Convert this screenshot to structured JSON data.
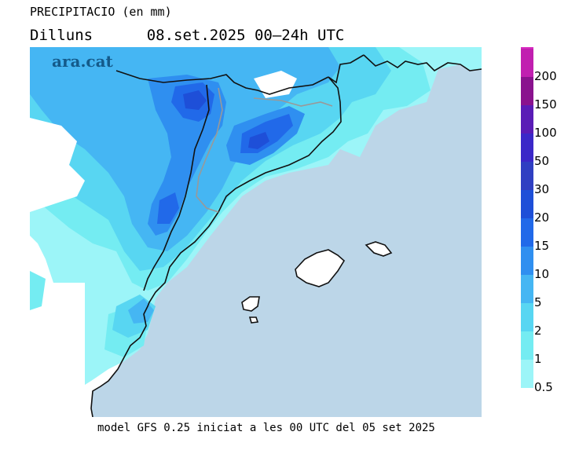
{
  "header": {
    "title": "PRECIPITACIO (en mm)",
    "day": "Dilluns",
    "period": "08.set.2025 00–24h UTC"
  },
  "logo": {
    "text": "ara.cat"
  },
  "footer": {
    "text": "model GFS 0.25 iniciat a les 00 UTC del 05 set 2025"
  },
  "legend": {
    "bins": [
      {
        "label": "0.5",
        "color": "#9cf5f8"
      },
      {
        "label": "1",
        "color": "#74ecf2"
      },
      {
        "label": "2",
        "color": "#58d6f2"
      },
      {
        "label": "5",
        "color": "#45b6f3"
      },
      {
        "label": "10",
        "color": "#2f8ff0"
      },
      {
        "label": "15",
        "color": "#2169e9"
      },
      {
        "label": "20",
        "color": "#1e4fd8"
      },
      {
        "label": "30",
        "color": "#2f3fc2"
      },
      {
        "label": "50",
        "color": "#3b28c8"
      },
      {
        "label": "100",
        "color": "#5a1cb6"
      },
      {
        "label": "150",
        "color": "#8a128e"
      },
      {
        "label": "200",
        "color": "#c11fb0"
      }
    ],
    "top_color": "#d82bc0"
  },
  "map": {
    "sea_color": "#bcd6e8",
    "land_dry_color": "#ffffff"
  }
}
